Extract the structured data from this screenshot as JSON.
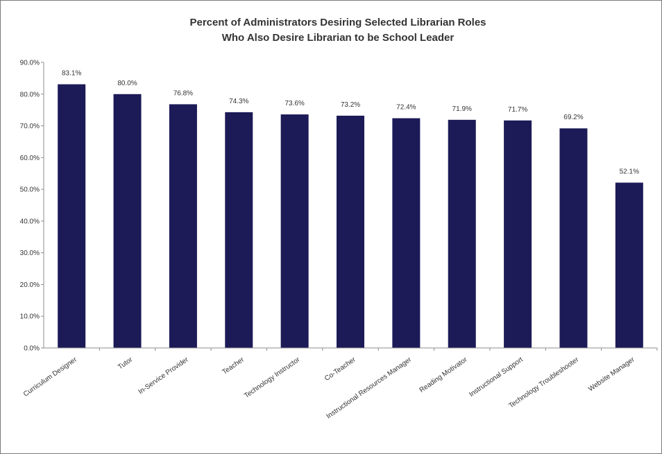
{
  "chart_data": {
    "type": "bar",
    "title": "Percent of Administrators Desiring Selected Librarian Roles Who Also Desire Librarian to be School Leader",
    "title_lines": [
      "Percent of Administrators Desiring Selected Librarian Roles",
      "Who Also Desire Librarian to be School Leader"
    ],
    "xlabel": "",
    "ylabel": "",
    "ylim": [
      0,
      90
    ],
    "ytick_values": [
      0,
      10,
      20,
      30,
      40,
      50,
      60,
      70,
      80,
      90
    ],
    "ytick_labels": [
      "0.0%",
      "10.0%",
      "20.0%",
      "30.0%",
      "40.0%",
      "50.0%",
      "60.0%",
      "70.0%",
      "80.0%",
      "90.0%"
    ],
    "categories": [
      "Curriculum Designer",
      "Tutor",
      "In-Service Provider",
      "Teacher",
      "Technology Instructor",
      "Co-Teacher",
      "Instructional Resources Manager",
      "Reading Motivator",
      "Instructional Support",
      "Technology Troubleshooter",
      "Website Manager"
    ],
    "values": [
      83.1,
      80.0,
      76.8,
      74.3,
      73.6,
      73.2,
      72.4,
      71.9,
      71.7,
      69.2,
      52.1
    ],
    "value_labels": [
      "83.1%",
      "80.0%",
      "76.8%",
      "74.3%",
      "73.6%",
      "73.2%",
      "72.4%",
      "71.9%",
      "71.7%",
      "69.2%",
      "52.1%"
    ],
    "bar_color": "#1c1a57",
    "grid": false,
    "legend": "none"
  }
}
